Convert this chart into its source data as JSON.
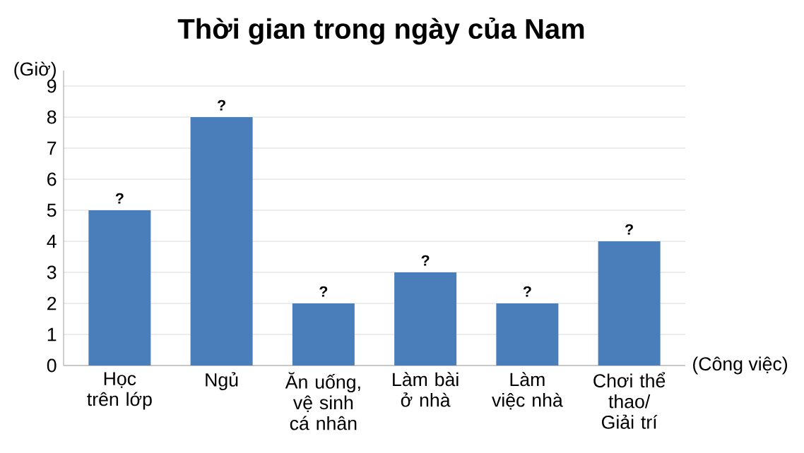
{
  "chart_data": {
    "type": "bar",
    "title": "Thời gian trong ngày của Nam",
    "xlabel": "(Công việc)",
    "ylabel": "(Giờ)",
    "categories": [
      "Học trên lớp",
      "Ngủ",
      "Ăn uống, vệ sinh cá nhân",
      "Làm bài ở nhà",
      "Làm việc nhà",
      "Chơi thể thao/ Giải trí"
    ],
    "values": [
      5,
      8,
      2,
      3,
      2,
      4
    ],
    "value_labels": [
      "?",
      "?",
      "?",
      "?",
      "?",
      "?"
    ],
    "color": "#4a7ebb",
    "ylim": [
      0,
      9.5
    ],
    "yticks": [
      0,
      1,
      2,
      3,
      4,
      5,
      6,
      7,
      8,
      9
    ],
    "grid": "y"
  }
}
